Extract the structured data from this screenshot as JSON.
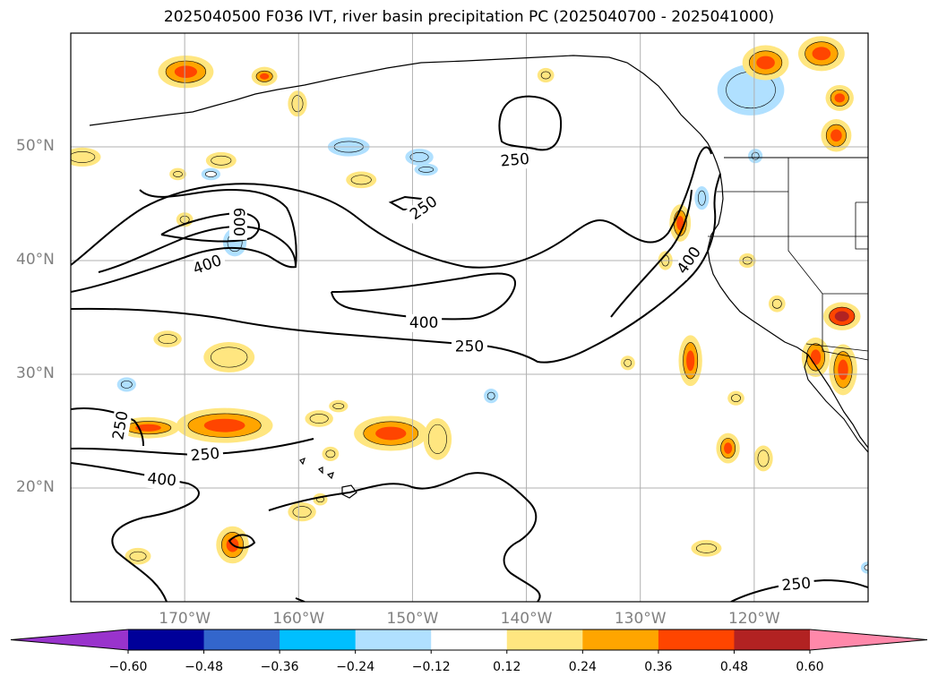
{
  "title": "2025040500 F036 IVT, river basin precipitation PC (2025040700 - 2025041000)",
  "map": {
    "projection": "PlateCarree",
    "extent_lon": [
      -180,
      -110
    ],
    "extent_lat": [
      10,
      60
    ],
    "gridlines": true,
    "coastlines": true,
    "state_borders": true
  },
  "lat_labels": [
    {
      "lat": 50,
      "text": "50°N"
    },
    {
      "lat": 40,
      "text": "40°N"
    },
    {
      "lat": 30,
      "text": "30°N"
    },
    {
      "lat": 20,
      "text": "20°N"
    }
  ],
  "lon_labels": [
    {
      "lon": -170,
      "text": "170°W"
    },
    {
      "lon": -160,
      "text": "160°W"
    },
    {
      "lon": -150,
      "text": "150°W"
    },
    {
      "lon": -140,
      "text": "140°W"
    },
    {
      "lon": -130,
      "text": "130°W"
    },
    {
      "lon": -120,
      "text": "120°W"
    }
  ],
  "ivt_contours": {
    "levels": [
      250,
      400,
      600
    ],
    "labels": [
      {
        "text": "250",
        "lon": -141.0,
        "lat": 48.8,
        "rotate": -5
      },
      {
        "text": "250",
        "lon": -149.0,
        "lat": 44.6,
        "rotate": -35
      },
      {
        "text": "600",
        "lon": -165.3,
        "lat": 43.4,
        "rotate": 90
      },
      {
        "text": "400",
        "lon": -168.0,
        "lat": 39.6,
        "rotate": -20
      },
      {
        "text": "400",
        "lon": -125.7,
        "lat": 40.0,
        "rotate": -55
      },
      {
        "text": "400",
        "lon": -149.0,
        "lat": 34.5,
        "rotate": 0
      },
      {
        "text": "250",
        "lon": -145.0,
        "lat": 32.4,
        "rotate": 0
      },
      {
        "text": "250",
        "lon": -175.6,
        "lat": 25.5,
        "rotate": -80
      },
      {
        "text": "250",
        "lon": -168.2,
        "lat": 22.9,
        "rotate": -5
      },
      {
        "text": "400",
        "lon": -172.0,
        "lat": 20.7,
        "rotate": 5
      },
      {
        "text": "250",
        "lon": -116.3,
        "lat": 11.5,
        "rotate": -5
      }
    ]
  },
  "precip_pc": {
    "colorbar": {
      "ticks": [
        "−0.60",
        "−0.48",
        "−0.36",
        "−0.24",
        "−0.12",
        "0.12",
        "0.24",
        "0.36",
        "0.48",
        "0.60"
      ],
      "colors": [
        "#9933cc",
        "#000099",
        "#3366cc",
        "#00bfff",
        "#b0e0ff",
        "#ffffff",
        "#ffe680",
        "#ffa500",
        "#ff4500",
        "#b22222",
        "#ff88aa"
      ],
      "extend": "both"
    },
    "blobs": [
      {
        "lon": -169.9,
        "lat": 56.6,
        "rx": 2.2,
        "ry": 1.2,
        "value": 0.36
      },
      {
        "lon": -163.0,
        "lat": 56.2,
        "rx": 0.9,
        "ry": 0.6,
        "value": 0.36
      },
      {
        "lon": -166.8,
        "lat": 48.8,
        "rx": 1.1,
        "ry": 0.5,
        "value": 0.24
      },
      {
        "lon": -179.0,
        "lat": 49.1,
        "rx": 1.4,
        "ry": 0.6,
        "value": 0.24
      },
      {
        "lon": -155.6,
        "lat": 50.0,
        "rx": 1.6,
        "ry": 0.6,
        "value": -0.24
      },
      {
        "lon": -149.4,
        "lat": 49.1,
        "rx": 1.0,
        "ry": 0.5,
        "value": -0.24
      },
      {
        "lon": -148.8,
        "lat": 48.0,
        "rx": 0.8,
        "ry": 0.3,
        "value": -0.24
      },
      {
        "lon": -154.5,
        "lat": 47.1,
        "rx": 1.1,
        "ry": 0.5,
        "value": 0.24
      },
      {
        "lon": -160.1,
        "lat": 53.8,
        "rx": 0.6,
        "ry": 0.9,
        "value": 0.24
      },
      {
        "lon": -170.6,
        "lat": 47.6,
        "rx": 0.5,
        "ry": 0.3,
        "value": 0.24
      },
      {
        "lon": -167.7,
        "lat": 47.6,
        "rx": 0.6,
        "ry": 0.3,
        "value": -0.12
      },
      {
        "lon": -165.6,
        "lat": 41.6,
        "rx": 0.8,
        "ry": 1.0,
        "value": -0.24
      },
      {
        "lon": -170.0,
        "lat": 43.6,
        "rx": 0.5,
        "ry": 0.4,
        "value": 0.24
      },
      {
        "lon": -120.3,
        "lat": 55.0,
        "rx": 2.7,
        "ry": 2.0,
        "value": -0.24
      },
      {
        "lon": -119.0,
        "lat": 57.4,
        "rx": 1.8,
        "ry": 1.3,
        "value": 0.36
      },
      {
        "lon": -114.1,
        "lat": 58.2,
        "rx": 1.8,
        "ry": 1.3,
        "value": 0.36
      },
      {
        "lon": -112.5,
        "lat": 54.3,
        "rx": 1.0,
        "ry": 0.9,
        "value": 0.36
      },
      {
        "lon": -112.8,
        "lat": 51.0,
        "rx": 1.1,
        "ry": 1.2,
        "value": 0.36
      },
      {
        "lon": -126.5,
        "lat": 43.3,
        "rx": 0.7,
        "ry": 1.4,
        "value": 0.36
      },
      {
        "lon": -124.6,
        "lat": 45.5,
        "rx": 0.4,
        "ry": 0.8,
        "value": -0.24
      },
      {
        "lon": -127.8,
        "lat": 40.0,
        "rx": 0.4,
        "ry": 0.6,
        "value": 0.24
      },
      {
        "lon": -120.6,
        "lat": 40.0,
        "rx": 0.5,
        "ry": 0.4,
        "value": 0.24
      },
      {
        "lon": -118.0,
        "lat": 36.2,
        "rx": 0.5,
        "ry": 0.5,
        "value": 0.24
      },
      {
        "lon": -112.3,
        "lat": 35.1,
        "rx": 1.4,
        "ry": 1.0,
        "value": 0.48
      },
      {
        "lon": -114.6,
        "lat": 31.5,
        "rx": 1.0,
        "ry": 1.5,
        "value": 0.36
      },
      {
        "lon": -112.2,
        "lat": 30.4,
        "rx": 1.0,
        "ry": 2.0,
        "value": 0.36
      },
      {
        "lon": -125.6,
        "lat": 31.2,
        "rx": 0.8,
        "ry": 2.0,
        "value": 0.36
      },
      {
        "lon": -131.1,
        "lat": 31.0,
        "rx": 0.4,
        "ry": 0.4,
        "value": 0.24
      },
      {
        "lon": -121.6,
        "lat": 27.9,
        "rx": 0.5,
        "ry": 0.4,
        "value": 0.24
      },
      {
        "lon": -122.3,
        "lat": 23.5,
        "rx": 0.8,
        "ry": 1.1,
        "value": 0.36
      },
      {
        "lon": -119.2,
        "lat": 22.6,
        "rx": 0.6,
        "ry": 0.9,
        "value": 0.24
      },
      {
        "lon": -124.2,
        "lat": 14.7,
        "rx": 1.1,
        "ry": 0.5,
        "value": 0.24
      },
      {
        "lon": -166.1,
        "lat": 31.5,
        "rx": 2.0,
        "ry": 1.1,
        "value": 0.24
      },
      {
        "lon": -171.5,
        "lat": 33.1,
        "rx": 1.0,
        "ry": 0.5,
        "value": 0.24
      },
      {
        "lon": -175.1,
        "lat": 29.1,
        "rx": 0.6,
        "ry": 0.4,
        "value": -0.24
      },
      {
        "lon": -143.1,
        "lat": 28.1,
        "rx": 0.4,
        "ry": 0.4,
        "value": -0.24
      },
      {
        "lon": -173.2,
        "lat": 25.3,
        "rx": 2.5,
        "ry": 0.7,
        "value": 0.36
      },
      {
        "lon": -166.5,
        "lat": 25.5,
        "rx": 4.0,
        "ry": 1.3,
        "value": 0.36
      },
      {
        "lon": -158.2,
        "lat": 26.1,
        "rx": 1.0,
        "ry": 0.5,
        "value": 0.24
      },
      {
        "lon": -156.5,
        "lat": 27.2,
        "rx": 0.6,
        "ry": 0.3,
        "value": 0.24
      },
      {
        "lon": -151.9,
        "lat": 24.8,
        "rx": 3.0,
        "ry": 1.3,
        "value": 0.36
      },
      {
        "lon": -147.8,
        "lat": 24.3,
        "rx": 1.0,
        "ry": 1.6,
        "value": 0.24
      },
      {
        "lon": -157.2,
        "lat": 23.0,
        "rx": 0.5,
        "ry": 0.4,
        "value": 0.24
      },
      {
        "lon": -159.7,
        "lat": 17.9,
        "rx": 1.0,
        "ry": 0.6,
        "value": 0.24
      },
      {
        "lon": -158.1,
        "lat": 19.0,
        "rx": 0.4,
        "ry": 0.3,
        "value": 0.24
      },
      {
        "lon": -165.8,
        "lat": 15.0,
        "rx": 1.2,
        "ry": 1.4,
        "value": 0.36
      },
      {
        "lon": -174.1,
        "lat": 14.0,
        "rx": 0.9,
        "ry": 0.5,
        "value": 0.24
      },
      {
        "lon": -110.0,
        "lat": 13.0,
        "rx": 0.4,
        "ry": 0.3,
        "value": -0.12
      },
      {
        "lon": -138.3,
        "lat": 56.3,
        "rx": 0.5,
        "ry": 0.4,
        "value": 0.24
      },
      {
        "lon": -119.9,
        "lat": 49.2,
        "rx": 0.4,
        "ry": 0.4,
        "value": -0.24
      }
    ]
  }
}
